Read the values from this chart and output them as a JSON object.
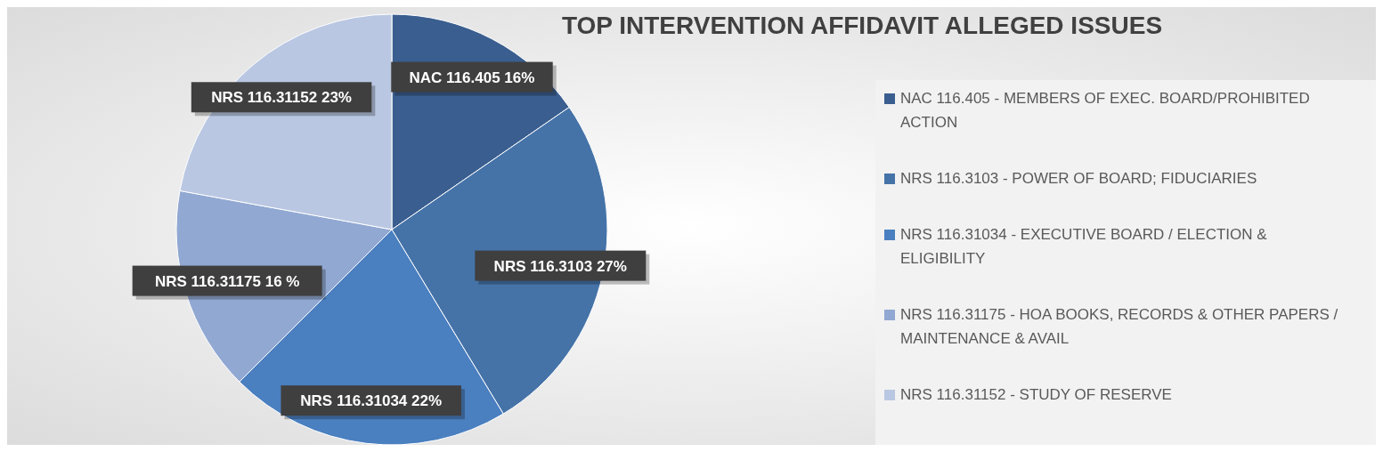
{
  "chart_data": {
    "type": "pie",
    "title": "TOP INTERVENTION AFFIDAVIT ALLEGED ISSUES",
    "categories": [
      "NAC 116.405 - MEMBERS OF EXEC. BOARD/PROHIBITED ACTION",
      "NRS 116.3103 - POWER OF BOARD; FIDUCIARIES",
      "NRS 116.31034 - EXECUTIVE BOARD / ELECTION & ELIGIBILITY",
      "NRS 116.31175 - HOA BOOKS, RECORDS & OTHER PAPERS / MAINTENANCE & AVAIL",
      "NRS 116.31152 - STUDY OF RESERVE"
    ],
    "values": [
      16,
      27,
      22,
      16,
      23
    ],
    "colors": [
      "#3a5e8f",
      "#4573a8",
      "#4a7fc0",
      "#91a8d2",
      "#b9c7e2"
    ],
    "value_labels": [
      "NAC 116.405 16%",
      "NRS 116.3103 27%",
      "NRS 116.31034 22%",
      "NRS 116.31175 16 %",
      "NRS 116.31152 23%"
    ],
    "legend": "right"
  }
}
